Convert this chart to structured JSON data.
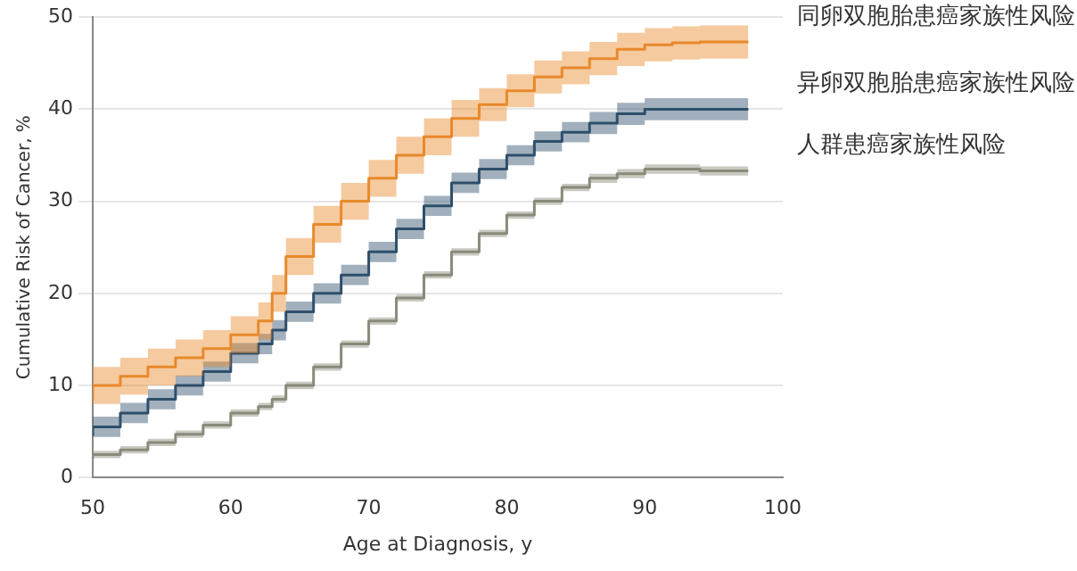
{
  "chart_data": {
    "type": "step",
    "xlabel": "Age at Diagnosis, y",
    "ylabel": "Cumulative Risk of Cancer, %",
    "xlim": [
      50,
      100
    ],
    "ylim": [
      0,
      50
    ],
    "xticks": [
      50,
      60,
      70,
      80,
      90,
      100
    ],
    "yticks": [
      0,
      10,
      20,
      30,
      40,
      50
    ],
    "grid": "y",
    "x": [
      50,
      52,
      54,
      56,
      58,
      60,
      62,
      63,
      64,
      66,
      68,
      70,
      72,
      74,
      76,
      78,
      80,
      82,
      84,
      86,
      88,
      90,
      92,
      94,
      96,
      97.5
    ],
    "series": [
      {
        "name": "同卵双胞胎患癌家族性风险",
        "color": "#e8892b",
        "values": [
          8.5,
          10,
          11,
          12,
          13,
          14,
          15.5,
          17,
          20,
          24,
          27.5,
          30,
          32.5,
          35,
          37,
          39,
          40.5,
          42,
          43.5,
          44.5,
          45.5,
          46.5,
          47,
          47.2,
          47.3,
          47.3
        ],
        "lower": [
          6.5,
          8,
          9,
          10,
          11,
          12,
          13.5,
          15,
          18,
          22,
          25.5,
          28,
          30.5,
          33,
          35,
          37,
          38.7,
          40.2,
          41.7,
          42.7,
          43.7,
          44.7,
          45.2,
          45.4,
          45.5,
          45.5
        ],
        "upper": [
          10.5,
          12,
          13,
          14,
          15,
          16,
          17.5,
          19,
          22,
          26,
          29.5,
          32,
          34.5,
          37,
          39,
          41,
          42.3,
          43.8,
          45.3,
          46.3,
          47.3,
          48.3,
          48.8,
          49,
          49.1,
          49.1
        ]
      },
      {
        "name": "异卵双胞胎患癌家族性风险",
        "color": "#2e4f6b",
        "values": [
          4.5,
          5.5,
          7,
          8.5,
          10,
          11.5,
          13.5,
          14.5,
          16,
          18,
          20,
          22,
          24.5,
          27,
          29.5,
          32,
          33.5,
          35,
          36.5,
          37.5,
          38.5,
          39.5,
          40,
          40,
          40,
          40
        ],
        "lower": [
          3.3,
          4.4,
          5.9,
          7.4,
          8.9,
          10.4,
          12.4,
          13.4,
          14.9,
          16.9,
          18.9,
          20.9,
          23.4,
          25.9,
          28.4,
          30.9,
          32.4,
          33.9,
          35.4,
          36.4,
          37.3,
          38.3,
          38.8,
          38.8,
          38.8,
          38.8
        ],
        "upper": [
          5.7,
          6.6,
          8.1,
          9.6,
          11.1,
          12.6,
          14.6,
          15.6,
          17.1,
          19.1,
          21.1,
          23.1,
          25.6,
          28.1,
          30.6,
          33.1,
          34.6,
          36.1,
          37.6,
          38.6,
          39.7,
          40.7,
          41.2,
          41.2,
          41.2,
          41.2
        ]
      },
      {
        "name": "人群患癌家族性风险",
        "color": "#8a8a7a",
        "values": [
          2,
          2.5,
          3,
          3.8,
          4.7,
          5.7,
          7,
          7.7,
          8.5,
          10,
          12,
          14.5,
          17,
          19.5,
          22,
          24.5,
          26.5,
          28.5,
          30,
          31.5,
          32.5,
          33,
          33.5,
          33.5,
          33.3,
          33.3
        ],
        "lower": [
          1.6,
          2.1,
          2.6,
          3.4,
          4.3,
          5.3,
          6.6,
          7.3,
          8.1,
          9.6,
          11.6,
          14.1,
          16.6,
          19.1,
          21.6,
          24.1,
          26.1,
          28.1,
          29.6,
          31.1,
          32,
          32.5,
          33,
          33,
          32.8,
          32.8
        ],
        "upper": [
          2.4,
          2.9,
          3.4,
          4.2,
          5.1,
          6.1,
          7.4,
          8.1,
          8.9,
          10.4,
          12.4,
          14.9,
          17.4,
          19.9,
          22.4,
          24.9,
          26.9,
          28.9,
          30.4,
          31.9,
          33,
          33.5,
          34,
          34,
          33.8,
          33.8
        ]
      }
    ]
  }
}
